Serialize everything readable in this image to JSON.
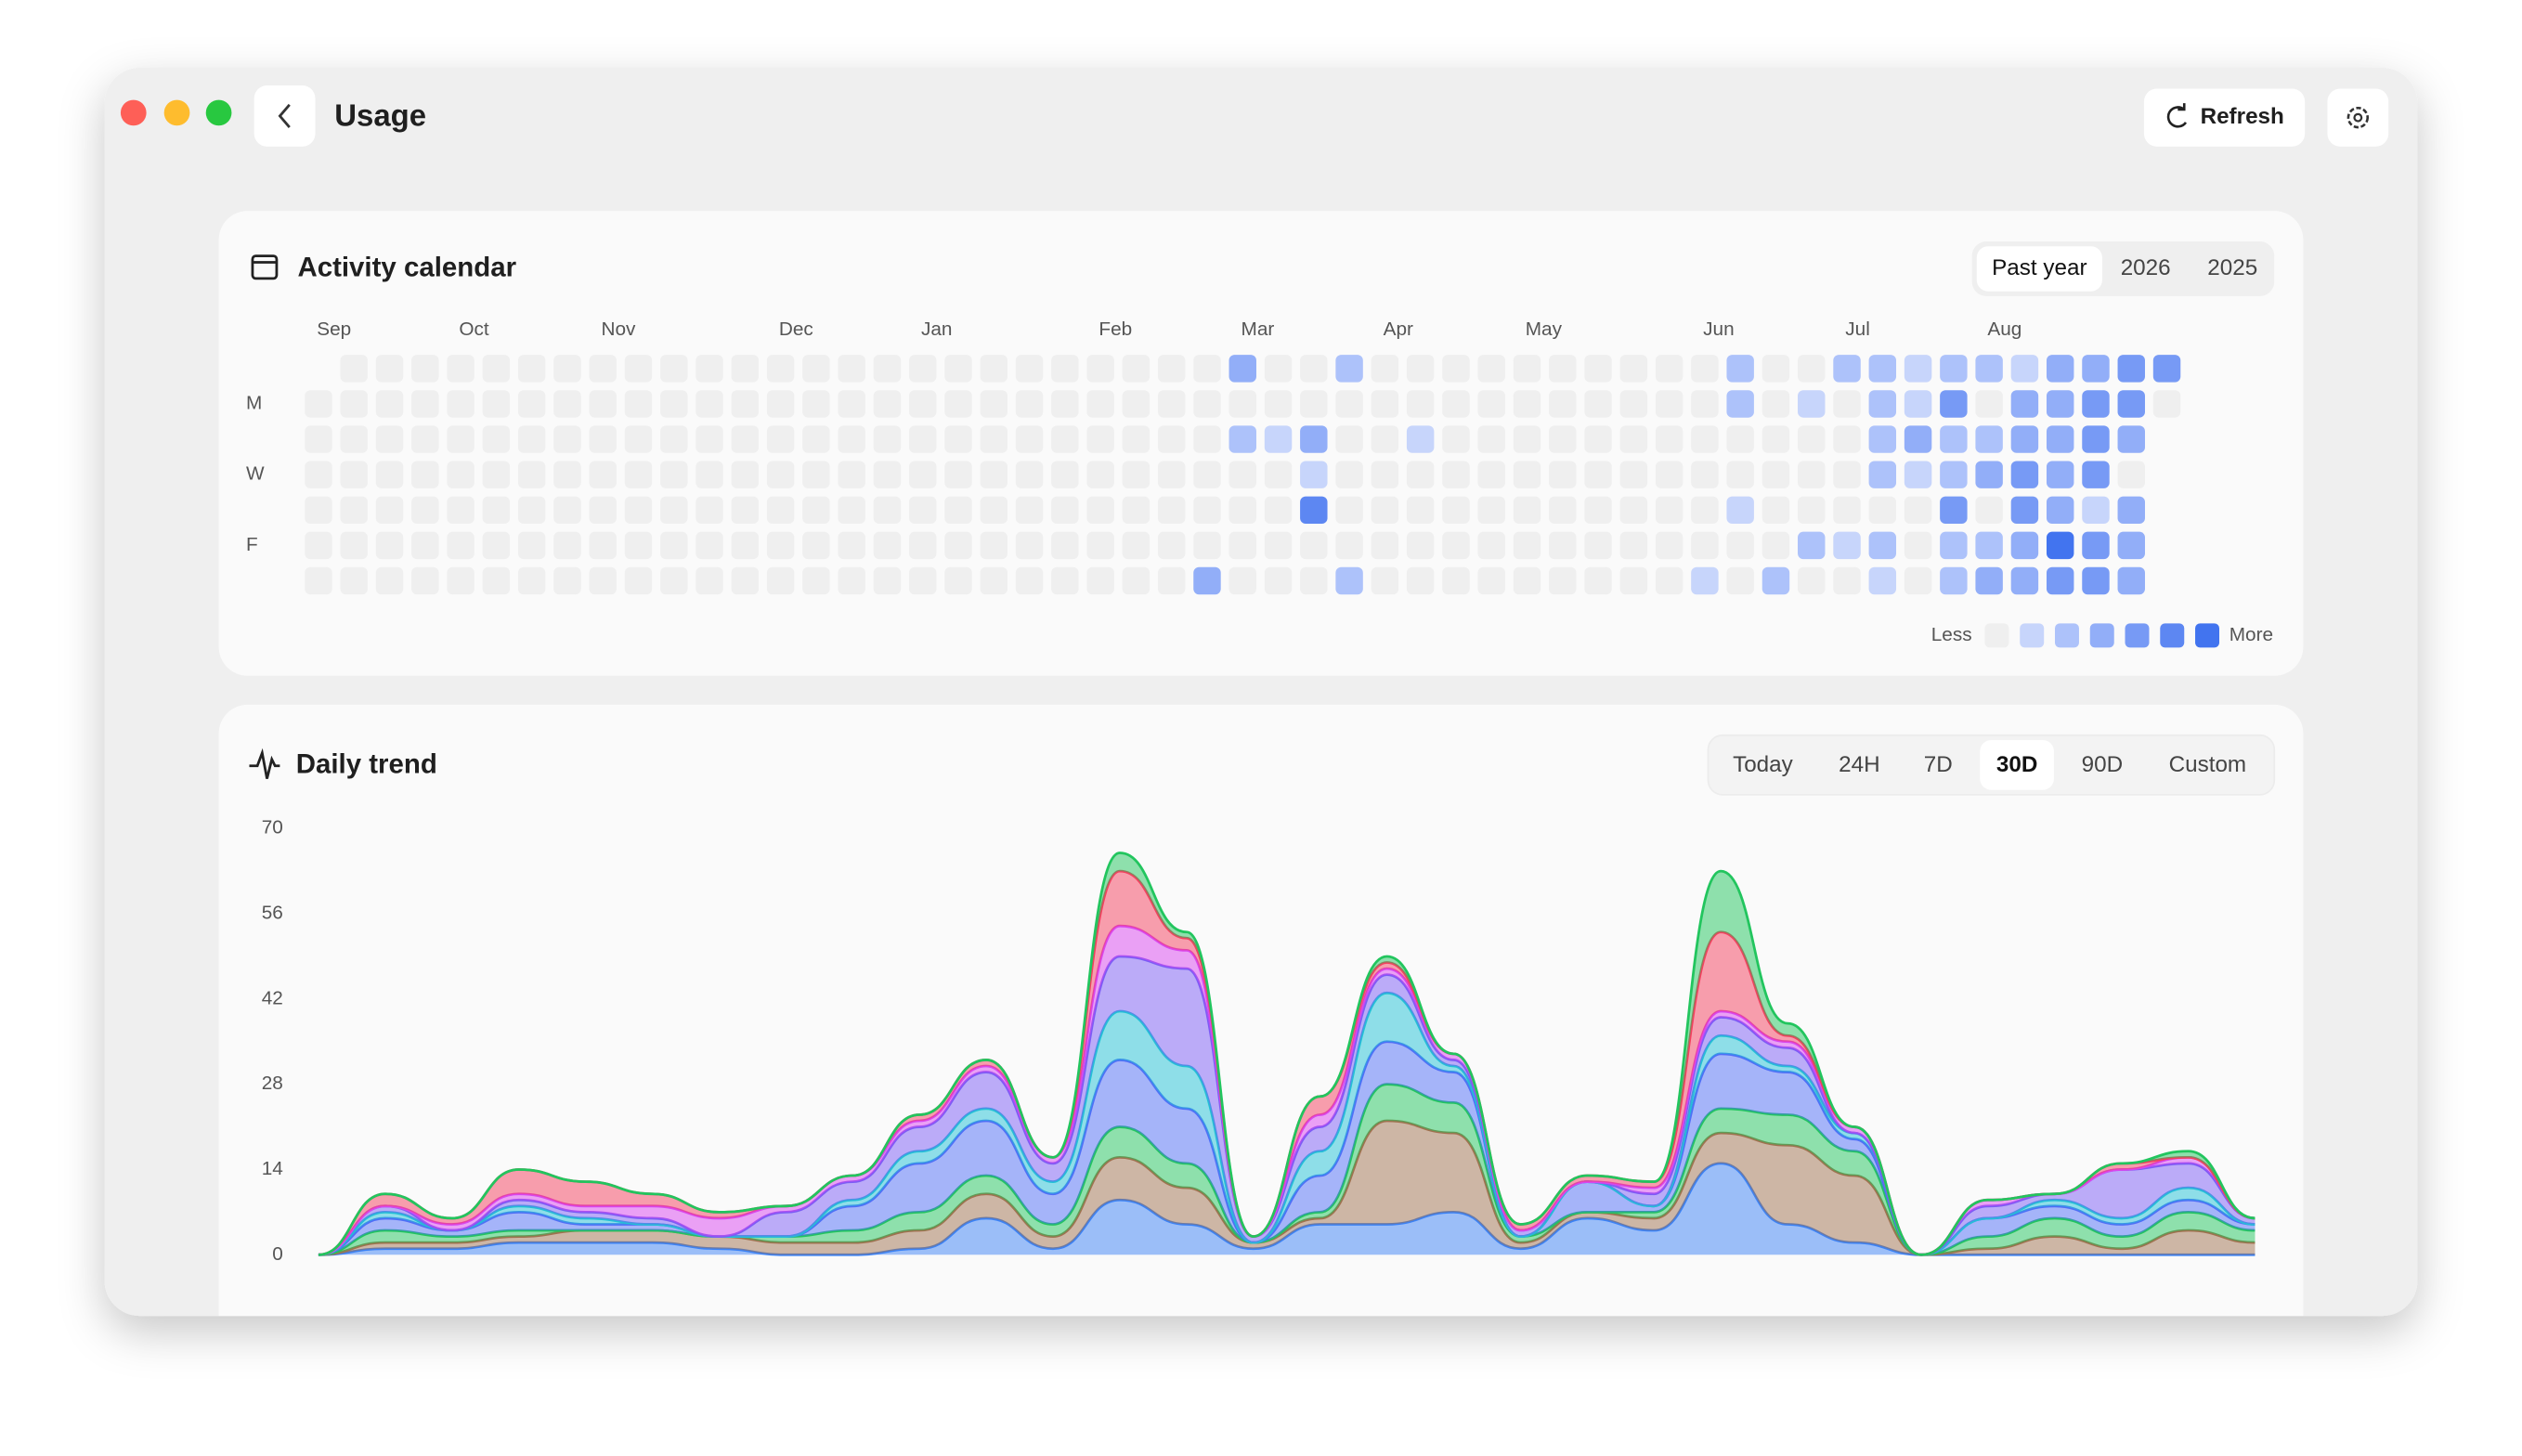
{
  "header": {
    "title": "Usage",
    "refresh": "Refresh"
  },
  "calendar": {
    "title": "Activity calendar",
    "ranges": [
      "Past year",
      "2026",
      "2025"
    ],
    "selected_range": 0,
    "months": [
      {
        "label": "Sep",
        "week": 0
      },
      {
        "label": "Oct",
        "week": 4
      },
      {
        "label": "Nov",
        "week": 8
      },
      {
        "label": "Dec",
        "week": 13
      },
      {
        "label": "Jan",
        "week": 17
      },
      {
        "label": "Feb",
        "week": 22
      },
      {
        "label": "Mar",
        "week": 26
      },
      {
        "label": "Apr",
        "week": 30
      },
      {
        "label": "May",
        "week": 34
      },
      {
        "label": "Jun",
        "week": 39
      },
      {
        "label": "Jul",
        "week": 43
      },
      {
        "label": "Aug",
        "week": 47
      }
    ],
    "day_labels": [
      null,
      "M",
      null,
      "W",
      null,
      "F",
      null
    ],
    "levels": [
      [
        null,
        0,
        0,
        0,
        0,
        0,
        0,
        0,
        0,
        0,
        0,
        0,
        0,
        0,
        0,
        0,
        0,
        0,
        0,
        0,
        0,
        0,
        0,
        0,
        0,
        0,
        3,
        0,
        0,
        2,
        0,
        0,
        0,
        0,
        0,
        0,
        0,
        0,
        0,
        0,
        2,
        0,
        0,
        2,
        2,
        1,
        2,
        2,
        1,
        3,
        3,
        4,
        4
      ],
      [
        0,
        0,
        0,
        0,
        0,
        0,
        0,
        0,
        0,
        0,
        0,
        0,
        0,
        0,
        0,
        0,
        0,
        0,
        0,
        0,
        0,
        0,
        0,
        0,
        0,
        0,
        0,
        0,
        0,
        0,
        0,
        0,
        0,
        0,
        0,
        0,
        0,
        0,
        0,
        0,
        2,
        0,
        1,
        0,
        2,
        1,
        4,
        0,
        3,
        3,
        4,
        4,
        0
      ],
      [
        0,
        0,
        0,
        0,
        0,
        0,
        0,
        0,
        0,
        0,
        0,
        0,
        0,
        0,
        0,
        0,
        0,
        0,
        0,
        0,
        0,
        0,
        0,
        0,
        0,
        0,
        2,
        1,
        3,
        0,
        0,
        1,
        0,
        0,
        0,
        0,
        0,
        0,
        0,
        0,
        0,
        0,
        0,
        0,
        2,
        3,
        2,
        2,
        3,
        3,
        4,
        3,
        null
      ],
      [
        0,
        0,
        0,
        0,
        0,
        0,
        0,
        0,
        0,
        0,
        0,
        0,
        0,
        0,
        0,
        0,
        0,
        0,
        0,
        0,
        0,
        0,
        0,
        0,
        0,
        0,
        0,
        0,
        1,
        0,
        0,
        0,
        0,
        0,
        0,
        0,
        0,
        0,
        0,
        0,
        0,
        0,
        0,
        0,
        2,
        1,
        2,
        3,
        4,
        3,
        4,
        0,
        null
      ],
      [
        0,
        0,
        0,
        0,
        0,
        0,
        0,
        0,
        0,
        0,
        0,
        0,
        0,
        0,
        0,
        0,
        0,
        0,
        0,
        0,
        0,
        0,
        0,
        0,
        0,
        0,
        0,
        0,
        5,
        0,
        0,
        0,
        0,
        0,
        0,
        0,
        0,
        0,
        0,
        0,
        1,
        0,
        0,
        0,
        0,
        0,
        4,
        0,
        4,
        3,
        1,
        3,
        null
      ],
      [
        0,
        0,
        0,
        0,
        0,
        0,
        0,
        0,
        0,
        0,
        0,
        0,
        0,
        0,
        0,
        0,
        0,
        0,
        0,
        0,
        0,
        0,
        0,
        0,
        0,
        0,
        0,
        0,
        0,
        0,
        0,
        0,
        0,
        0,
        0,
        0,
        0,
        0,
        0,
        0,
        0,
        0,
        2,
        1,
        2,
        0,
        2,
        2,
        3,
        6,
        4,
        3,
        null
      ],
      [
        0,
        0,
        0,
        0,
        0,
        0,
        0,
        0,
        0,
        0,
        0,
        0,
        0,
        0,
        0,
        0,
        0,
        0,
        0,
        0,
        0,
        0,
        0,
        0,
        0,
        3,
        0,
        0,
        0,
        2,
        0,
        0,
        0,
        0,
        0,
        0,
        0,
        0,
        0,
        1,
        0,
        2,
        0,
        0,
        1,
        0,
        2,
        3,
        3,
        4,
        4,
        3,
        null
      ]
    ],
    "level_colors": [
      "#efefef",
      "#c7d5fb",
      "#adc2fa",
      "#92aef8",
      "#779af5",
      "#5d87f2",
      "#4274ef"
    ],
    "legend": {
      "less": "Less",
      "more": "More"
    }
  },
  "chart_data": {
    "type": "stacked_area",
    "title": "Daily trend",
    "ranges": [
      "Today",
      "24H",
      "7D",
      "30D",
      "90D",
      "Custom"
    ],
    "selected_range": 3,
    "ylim": [
      0,
      70
    ],
    "yticks": [
      0,
      14,
      28,
      42,
      56,
      70
    ],
    "grid": false,
    "series": [
      {
        "color": "#3b82f6",
        "values": [
          0,
          1,
          1,
          2,
          2,
          2,
          1,
          0,
          0,
          1,
          6,
          1,
          9,
          5,
          1,
          5,
          5,
          7,
          1,
          6,
          4,
          15,
          5,
          2,
          0,
          0,
          0,
          0,
          0,
          0
        ]
      },
      {
        "color": "#a0714f",
        "values": [
          0,
          1,
          1,
          1,
          2,
          2,
          2,
          2,
          2,
          3,
          4,
          2,
          7,
          6,
          1,
          1,
          17,
          13,
          1,
          1,
          2,
          5,
          13,
          11,
          0,
          1,
          3,
          1,
          4,
          2
        ]
      },
      {
        "color": "#22c55e",
        "values": [
          0,
          2,
          1,
          1,
          0,
          0,
          0,
          1,
          2,
          3,
          3,
          2,
          5,
          4,
          0,
          1,
          6,
          5,
          1,
          0,
          1,
          4,
          5,
          4,
          0,
          2,
          3,
          2,
          3,
          2
        ]
      },
      {
        "color": "#4f6ef7",
        "values": [
          0,
          2,
          1,
          3,
          1,
          1,
          0,
          0,
          4,
          8,
          9,
          5,
          11,
          9,
          0,
          6,
          7,
          5,
          0,
          5,
          1,
          9,
          7,
          2,
          0,
          3,
          2,
          2,
          2,
          1
        ]
      },
      {
        "color": "#22c1d6",
        "values": [
          0,
          1,
          0,
          1,
          1,
          0,
          0,
          0,
          1,
          2,
          2,
          2,
          8,
          7,
          0,
          4,
          8,
          1,
          0,
          0,
          0,
          3,
          1,
          1,
          0,
          0,
          1,
          1,
          2,
          0
        ]
      },
      {
        "color": "#7c5cf5",
        "values": [
          0,
          1,
          0,
          1,
          1,
          1,
          0,
          4,
          3,
          4,
          6,
          3,
          9,
          16,
          1,
          4,
          3,
          1,
          1,
          0,
          2,
          3,
          3,
          0,
          0,
          2,
          1,
          8,
          4,
          1
        ]
      },
      {
        "color": "#d946ef",
        "values": [
          0,
          0,
          1,
          1,
          1,
          2,
          3,
          1,
          1,
          1,
          1,
          1,
          5,
          3,
          0,
          2,
          1,
          1,
          0,
          0,
          1,
          1,
          1,
          1,
          0,
          1,
          0,
          0,
          1,
          0
        ]
      },
      {
        "color": "#f43f5e",
        "values": [
          0,
          2,
          1,
          4,
          4,
          2,
          1,
          0,
          0,
          1,
          1,
          0,
          9,
          2,
          0,
          3,
          1,
          0,
          1,
          1,
          1,
          13,
          1,
          0,
          0,
          0,
          0,
          1,
          0,
          0
        ]
      },
      {
        "color": "#22c55e",
        "values": [
          0,
          0,
          0,
          0,
          0,
          0,
          0,
          0,
          0,
          0,
          0,
          0,
          3,
          1,
          0,
          0,
          1,
          0,
          0,
          0,
          0,
          10,
          2,
          0,
          0,
          0,
          0,
          0,
          1,
          0
        ]
      }
    ]
  }
}
